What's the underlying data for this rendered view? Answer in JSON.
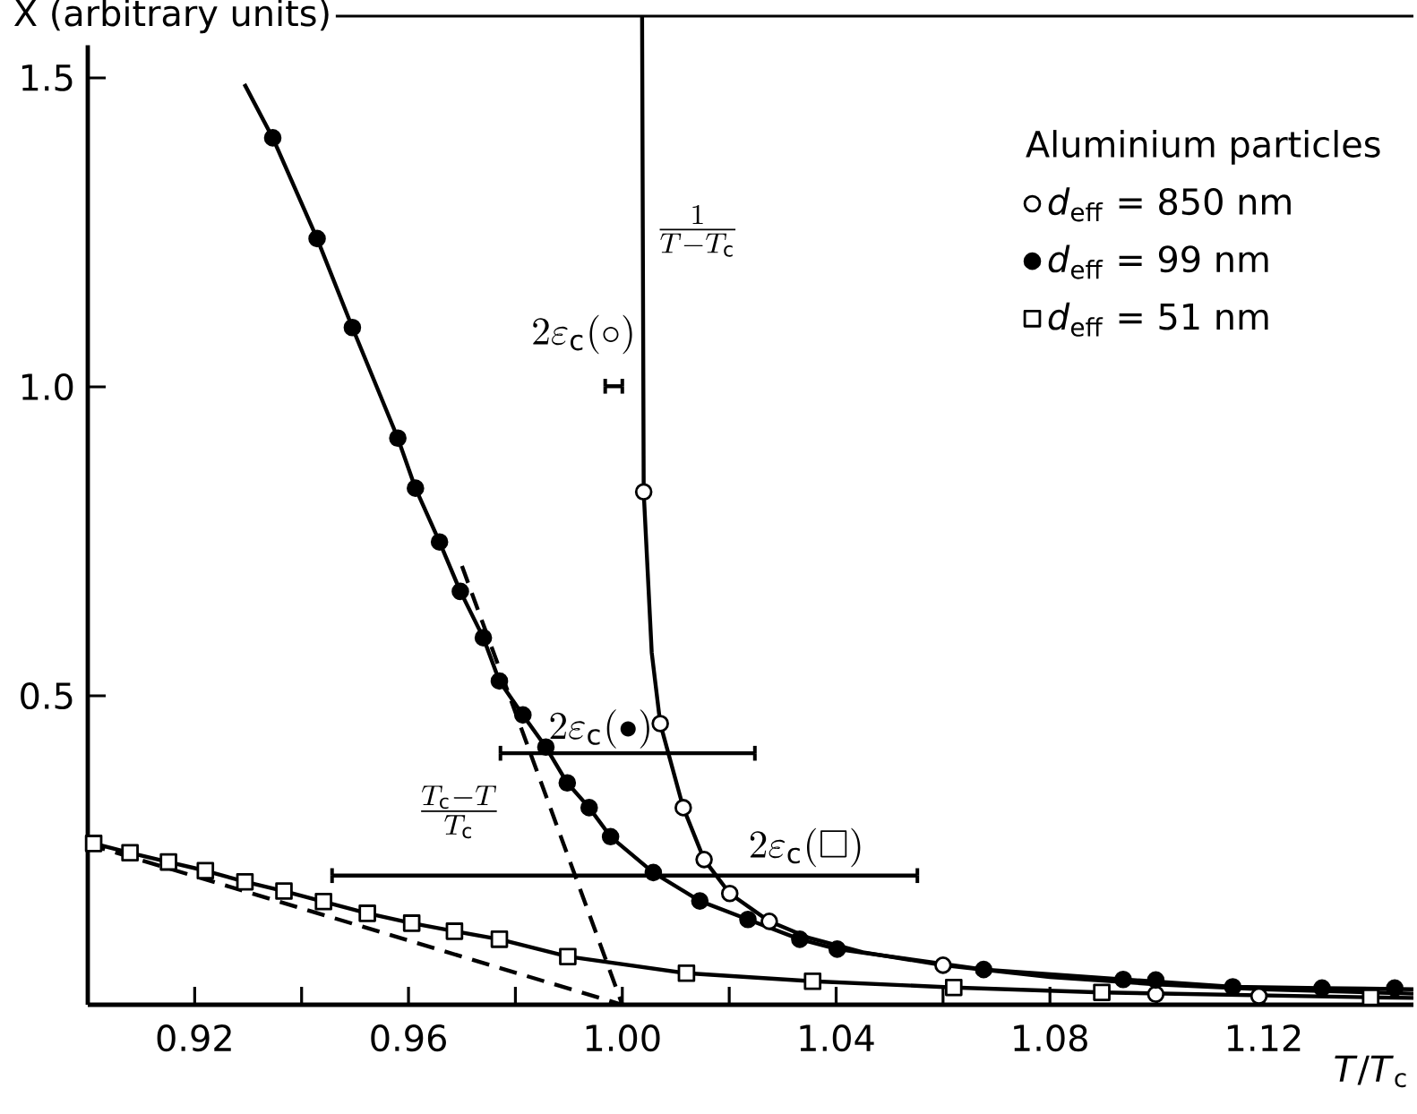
{
  "chart_data": {
    "type": "scatter",
    "xlabel": "*T*/*T*$_{c}$",
    "ylabel": "X (arbitrary units)",
    "legend_title": "Aluminium particles",
    "legend": "top right",
    "xlim": [
      0.9,
      1.148
    ],
    "ylim": [
      0,
      1.6
    ],
    "xticks": [
      0.92,
      {
        "value": 0.94,
        "label": null
      },
      0.96,
      {
        "value": 0.98,
        "label": null
      },
      {
        "value": 1.0,
        "label": "1.00"
      },
      {
        "value": 1.02,
        "label": null
      },
      1.04,
      {
        "value": 1.06,
        "label": null
      },
      1.08,
      {
        "value": 1.1,
        "label": null
      },
      1.12,
      {
        "value": 1.14,
        "label": null
      }
    ],
    "yticks": [
      0.5,
      {
        "value": 1.0,
        "label": "1.0"
      },
      1.5
    ],
    "series": [
      {
        "name": "*d*$_{eff}$ = 850 nm",
        "color": "#ffffff",
        "marker": "circle",
        "x": [
          1.004,
          1.0071,
          1.0114,
          1.0153,
          1.0201,
          1.0275,
          1.06,
          1.0998,
          1.1191
        ],
        "values": [
          0.83,
          0.455,
          0.319,
          0.235,
          0.18,
          0.135,
          0.064,
          0.017,
          0.014
        ]
      },
      {
        "name": "*d*$_{eff}$ = 99 nm",
        "color": "#000000",
        "marker": "circle",
        "x": [
          0.9346,
          0.9429,
          0.9495,
          0.958,
          0.9613,
          0.9658,
          0.9697,
          0.974,
          0.977,
          0.9814,
          0.9857,
          0.9897,
          0.9938,
          0.9978,
          1.0058,
          1.0145,
          1.0235,
          1.0332,
          1.0402,
          1.0676,
          1.0937,
          1.0998,
          1.1142,
          1.1309,
          1.1445
        ],
        "values": [
          1.403,
          1.24,
          1.096,
          0.917,
          0.836,
          0.749,
          0.669,
          0.594,
          0.524,
          0.469,
          0.417,
          0.359,
          0.319,
          0.272,
          0.214,
          0.168,
          0.138,
          0.106,
          0.09,
          0.057,
          0.041,
          0.04,
          0.029,
          0.027,
          0.027
        ]
      },
      {
        "name": "*d*$_{eff}$ = 51 nm",
        "color": "#ffffff",
        "marker": "square",
        "x": [
          0.9011,
          0.9079,
          0.9151,
          0.922,
          0.9294,
          0.9367,
          0.9441,
          0.9523,
          0.9606,
          0.9686,
          0.977,
          0.9898,
          1.012,
          1.0356,
          1.062,
          1.0897,
          1.14
        ],
        "values": [
          0.261,
          0.246,
          0.231,
          0.217,
          0.199,
          0.184,
          0.167,
          0.148,
          0.132,
          0.119,
          0.106,
          0.078,
          0.051,
          0.038,
          0.028,
          0.02,
          0.012
        ]
      },
      {
        "type": "line",
        "color": "#000000",
        "marker": "none",
        "line_style": "solid",
        "x": [
          1.0037,
          1.004,
          1.0055,
          1.0071,
          1.0114,
          1.0153,
          1.0201,
          1.0275,
          1.035,
          1.045,
          1.06,
          1.08,
          1.1,
          1.12,
          1.148
        ],
        "values": [
          1.6,
          0.83,
          0.57,
          0.455,
          0.319,
          0.235,
          0.18,
          0.135,
          0.108,
          0.085,
          0.064,
          0.045,
          0.033,
          0.025,
          0.018
        ]
      },
      {
        "type": "line",
        "color": "#000000",
        "marker": "none",
        "line_style": "solid",
        "x": [
          0.9293,
          0.9346,
          0.9429,
          0.9495,
          0.958,
          0.9613,
          0.9658,
          0.9697,
          0.974,
          0.977,
          0.9814,
          0.9857,
          0.9897,
          0.9938,
          0.9978,
          1.0058,
          1.0145,
          1.0235,
          1.0332,
          1.0402,
          1.0676,
          1.0937,
          1.1142,
          1.1309,
          1.148
        ],
        "values": [
          1.49,
          1.403,
          1.24,
          1.096,
          0.917,
          0.836,
          0.749,
          0.669,
          0.594,
          0.524,
          0.469,
          0.417,
          0.359,
          0.319,
          0.272,
          0.214,
          0.168,
          0.138,
          0.106,
          0.09,
          0.057,
          0.041,
          0.029,
          0.027,
          0.025
        ]
      },
      {
        "type": "line",
        "color": "#000000",
        "marker": "none",
        "line_style": "solid",
        "x": [
          0.9,
          0.9011,
          0.9079,
          0.9151,
          0.922,
          0.9294,
          0.9367,
          0.9441,
          0.9523,
          0.9606,
          0.9686,
          0.977,
          0.9898,
          1.012,
          1.0356,
          1.062,
          1.0897,
          1.14,
          1.148
        ],
        "values": [
          0.265,
          0.261,
          0.246,
          0.231,
          0.217,
          0.199,
          0.184,
          0.167,
          0.148,
          0.132,
          0.119,
          0.106,
          0.078,
          0.051,
          0.038,
          0.028,
          0.02,
          0.012,
          0.011
        ]
      },
      {
        "type": "line",
        "color": "#000000",
        "marker": "none",
        "line_style": "dashed",
        "x": [
          0.97,
          1.0
        ],
        "values": [
          0.71,
          0
        ]
      },
      {
        "type": "line",
        "color": "#000000",
        "marker": "none",
        "line_style": "dashed",
        "x": [
          0.9,
          1.0
        ],
        "values": [
          0.26,
          0
        ]
      },
      {
        "type": "line",
        "color": "#000000",
        "marker": "none",
        "line_style": "solid",
        "x": [
          0.9968,
          1.0
        ],
        "values": [
          1.001,
          1.001
        ],
        "errors": [
          0.012,
          0.012
        ]
      },
      {
        "type": "line",
        "color": "#000000",
        "marker": "none",
        "line_style": "solid",
        "x": [
          0.9772,
          1.0248
        ],
        "values": [
          0.407,
          0.407
        ],
        "errors": [
          0.012,
          0.012
        ]
      },
      {
        "type": "line",
        "color": "#000000",
        "marker": "none",
        "line_style": "solid",
        "x": [
          0.9457,
          1.0552
        ],
        "values": [
          0.209,
          0.209
        ],
        "errors": [
          0.012,
          0.012
        ]
      }
    ],
    "annotations": [
      "2\\varepsilon_{\\mathrm{c}}(\\circ)",
      "2\\varepsilon_{\\mathrm{c}}(\\bullet)",
      "2\\varepsilon_{\\mathrm{c}}(\\square)",
      "\\frac{1}{T-T_{\\mathrm{c}}}",
      "\\frac{T_{\\mathrm{c}}-T}{T_{\\mathrm{c}}}"
    ]
  }
}
